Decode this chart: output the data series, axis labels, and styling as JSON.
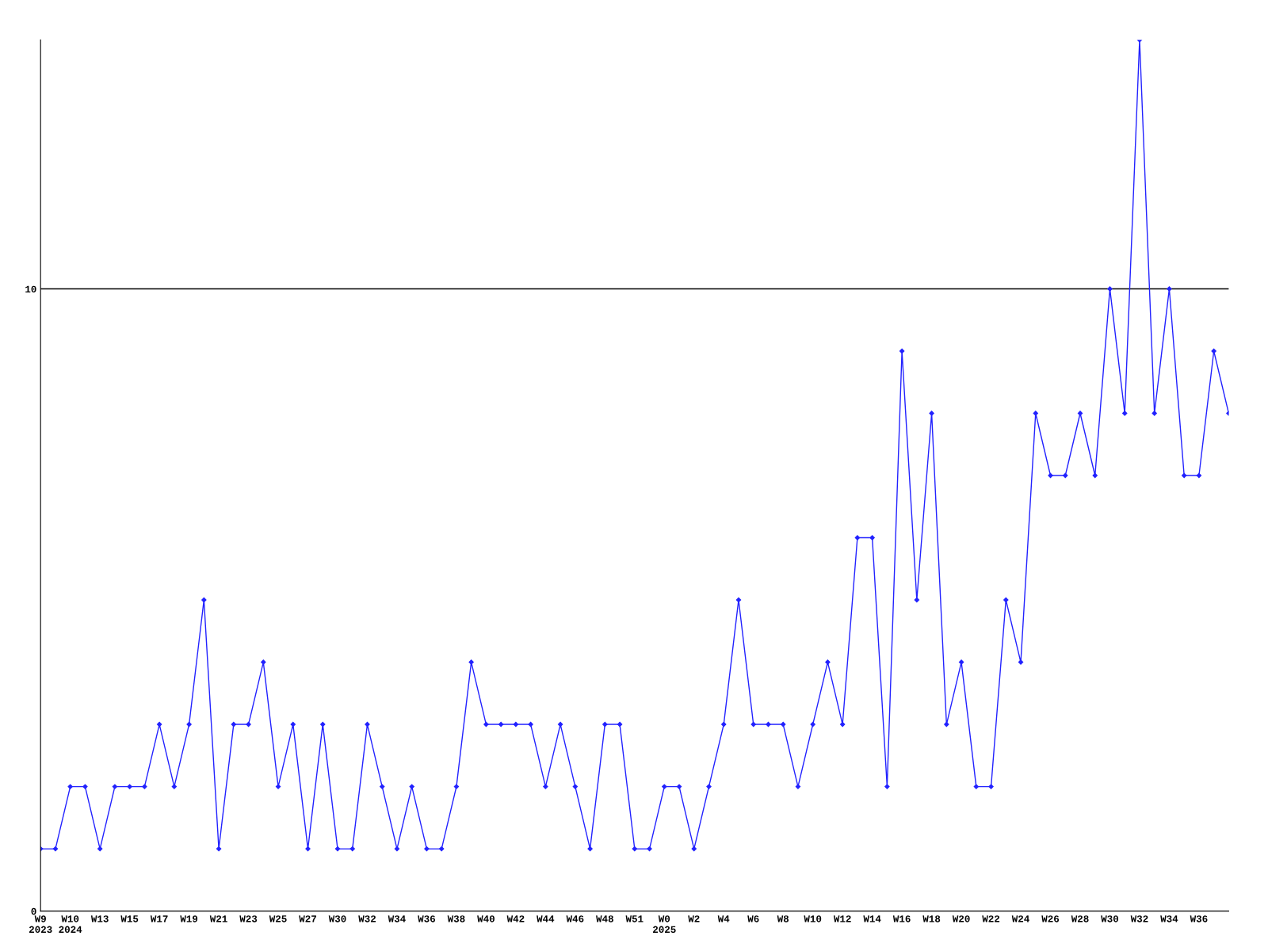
{
  "chart_data": {
    "type": "line",
    "categories": [
      "W9\n2023",
      null,
      "W10\n2024",
      null,
      "W13",
      null,
      "W15",
      null,
      "W17",
      null,
      "W19",
      null,
      "W21",
      null,
      "W23",
      null,
      "W25",
      null,
      "W27",
      null,
      "W30",
      null,
      "W32",
      null,
      "W34",
      null,
      "W36",
      null,
      "W38",
      null,
      "W40",
      null,
      "W42",
      null,
      "W44",
      null,
      "W46",
      null,
      "W48",
      null,
      "W51",
      null,
      "W0\n2025",
      null,
      "W2",
      null,
      "W4",
      null,
      "W6",
      null,
      "W8",
      null,
      "W10",
      null,
      "W12",
      null,
      "W14",
      null,
      "W16",
      null,
      "W18",
      null,
      "W20",
      null,
      "W22",
      null,
      "W24",
      null,
      "W26",
      null,
      "W28",
      null,
      "W30",
      null,
      "W32",
      null,
      "W34",
      null,
      "W36",
      null,
      null
    ],
    "series": [
      {
        "color": "#2222ff",
        "values": [
          1,
          1,
          2,
          2,
          1,
          2,
          2,
          2,
          3,
          2,
          3,
          5,
          1,
          3,
          3,
          4,
          2,
          3,
          1,
          3,
          1,
          1,
          3,
          2,
          1,
          2,
          1,
          1,
          2,
          4,
          3,
          3,
          3,
          3,
          2,
          3,
          2,
          1,
          3,
          3,
          1,
          1,
          2,
          2,
          1,
          2,
          3,
          5,
          3,
          3,
          3,
          2,
          3,
          4,
          3,
          6,
          6,
          2,
          9,
          5,
          8,
          3,
          4,
          2,
          2,
          5,
          4,
          8,
          7,
          7,
          8,
          7,
          10,
          8,
          14,
          8,
          10,
          7,
          7,
          9,
          8
        ]
      }
    ],
    "ylim": [
      0,
      14
    ],
    "yticks": [
      0,
      10
    ],
    "grid": "y",
    "marker": "diamond",
    "line_style": "solid"
  }
}
